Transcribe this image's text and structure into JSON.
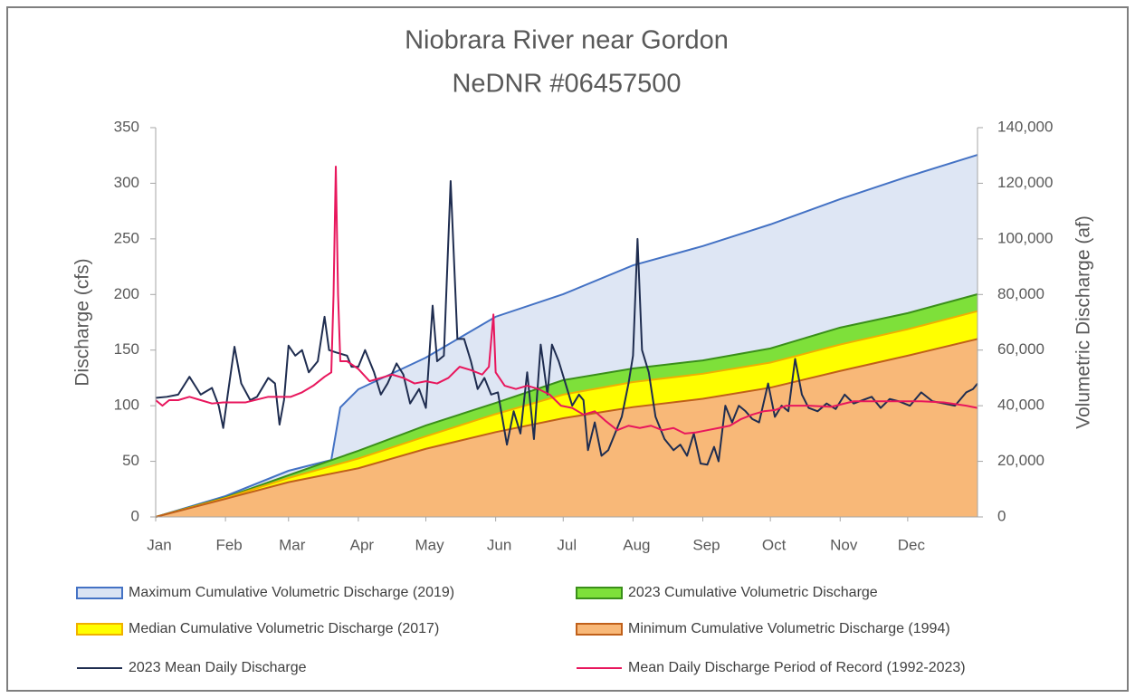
{
  "chart_data": {
    "type": "line",
    "title": "Niobrara River near Gordon",
    "subtitle": "NeDNR #06457500",
    "y_label": "Discharge (cfs)",
    "y2_label": "Volumetric Discharge (af)",
    "xlim": [
      0,
      365
    ],
    "xticks": [
      {
        "value": 0,
        "label": "Jan"
      },
      {
        "value": 31,
        "label": "Feb"
      },
      {
        "value": 59,
        "label": "Mar"
      },
      {
        "value": 90,
        "label": "Apr"
      },
      {
        "value": 120,
        "label": "May"
      },
      {
        "value": 151,
        "label": "Jun"
      },
      {
        "value": 181,
        "label": "Jul"
      },
      {
        "value": 212,
        "label": "Aug"
      },
      {
        "value": 243,
        "label": "Sep"
      },
      {
        "value": 273,
        "label": "Oct"
      },
      {
        "value": 304,
        "label": "Nov"
      },
      {
        "value": 334,
        "label": "Dec"
      }
    ],
    "ylim": [
      0,
      350
    ],
    "yticks": [
      0,
      50,
      100,
      150,
      200,
      250,
      300,
      350
    ],
    "y2lim": [
      0,
      140000
    ],
    "y2ticks": [
      0,
      {
        "value": 20000,
        "label": "20,000"
      },
      {
        "value": 40000,
        "label": "40,000"
      },
      {
        "value": 60000,
        "label": "60,000"
      },
      {
        "value": 80000,
        "label": "80,000"
      },
      {
        "value": 100000,
        "label": "100,000"
      },
      {
        "value": 120000,
        "label": "120,000"
      },
      {
        "value": 140000,
        "label": "140,000"
      }
    ],
    "legend": "bottom",
    "series": [
      {
        "name": "Maximum Cumulative Volumetric Discharge (2019)",
        "kind": "area",
        "axis": "y2",
        "color": "#4472c4",
        "fill": "#dae3f3",
        "x": [
          0,
          31,
          59,
          78,
          82,
          90,
          120,
          151,
          181,
          212,
          243,
          273,
          304,
          334,
          365
        ],
        "values": [
          0,
          7500,
          16600,
          20500,
          39400,
          45900,
          57300,
          72000,
          80100,
          90500,
          97400,
          105200,
          114300,
          122400,
          130200
        ]
      },
      {
        "name": "2023 Cumulative Volumetric Discharge",
        "kind": "area",
        "axis": "y2",
        "color": "#3a8f1a",
        "fill": "#7ee03a",
        "x": [
          0,
          31,
          59,
          90,
          120,
          151,
          181,
          212,
          243,
          273,
          304,
          334,
          365
        ],
        "values": [
          0,
          7000,
          15000,
          23800,
          32900,
          41000,
          49200,
          53400,
          56300,
          60600,
          68100,
          73300,
          80100
        ]
      },
      {
        "name": "Median Cumulative Volumetric Discharge (2017)",
        "kind": "area",
        "axis": "y2",
        "color": "#f0b000",
        "fill": "#ffff00",
        "x": [
          0,
          31,
          59,
          90,
          120,
          151,
          181,
          212,
          243,
          273,
          304,
          334,
          365
        ],
        "values": [
          0,
          6800,
          14000,
          21000,
          29000,
          37000,
          44000,
          48500,
          51500,
          55500,
          62000,
          67500,
          74000
        ]
      },
      {
        "name": "Minimum Cumulative Volumetric Discharge (1994)",
        "kind": "area",
        "axis": "y2",
        "color": "#c0601a",
        "fill": "#f8b878",
        "x": [
          0,
          31,
          59,
          90,
          120,
          151,
          181,
          212,
          243,
          273,
          304,
          334,
          365
        ],
        "values": [
          0,
          6500,
          12500,
          17500,
          24500,
          30500,
          35500,
          39500,
          42500,
          46500,
          52500,
          58000,
          64000
        ]
      },
      {
        "name": "2023 Mean Daily Discharge",
        "kind": "line",
        "axis": "y",
        "color": "#1f2d50",
        "x": [
          0,
          5,
          10,
          15,
          20,
          25,
          28,
          30,
          32,
          35,
          38,
          42,
          45,
          50,
          53,
          55,
          57,
          59,
          62,
          65,
          68,
          72,
          75,
          77,
          80,
          85,
          87,
          90,
          93,
          97,
          100,
          103,
          107,
          110,
          113,
          117,
          120,
          123,
          125,
          128,
          131,
          134,
          137,
          140,
          143,
          146,
          149,
          152,
          156,
          159,
          162,
          165,
          168,
          171,
          174,
          176,
          179,
          182,
          185,
          188,
          190,
          192,
          195,
          198,
          201,
          204,
          207,
          210,
          212,
          214,
          216,
          219,
          222,
          226,
          230,
          233,
          236,
          239,
          242,
          245,
          248,
          250,
          253,
          256,
          259,
          262,
          265,
          268,
          272,
          275,
          278,
          281,
          284,
          287,
          290,
          294,
          298,
          302,
          306,
          310,
          314,
          318,
          322,
          326,
          330,
          335,
          340,
          345,
          350,
          355,
          360,
          363,
          365
        ],
        "values": [
          107,
          108,
          110,
          126,
          110,
          116,
          100,
          80,
          110,
          153,
          120,
          105,
          108,
          125,
          120,
          83,
          105,
          154,
          145,
          150,
          130,
          140,
          180,
          150,
          148,
          145,
          135,
          135,
          150,
          130,
          110,
          120,
          138,
          128,
          102,
          115,
          98,
          190,
          140,
          145,
          302,
          160,
          160,
          140,
          115,
          125,
          110,
          112,
          65,
          95,
          75,
          130,
          70,
          155,
          110,
          155,
          140,
          120,
          100,
          110,
          105,
          60,
          85,
          55,
          60,
          75,
          90,
          120,
          145,
          250,
          150,
          130,
          90,
          70,
          60,
          65,
          55,
          75,
          48,
          47,
          63,
          50,
          100,
          85,
          100,
          95,
          88,
          85,
          120,
          90,
          100,
          95,
          142,
          110,
          98,
          95,
          102,
          97,
          110,
          102,
          105,
          108,
          98,
          106,
          104,
          100,
          112,
          104,
          102,
          100,
          112,
          115,
          120
        ]
      },
      {
        "name": "Mean Daily Discharge Period of Record (1992-2023)",
        "kind": "line",
        "axis": "y",
        "color": "#e8175d",
        "x": [
          0,
          3,
          6,
          10,
          15,
          20,
          25,
          30,
          40,
          50,
          60,
          65,
          70,
          75,
          78,
          79,
          80,
          81,
          82,
          85,
          90,
          95,
          100,
          105,
          110,
          115,
          120,
          125,
          130,
          135,
          140,
          145,
          148,
          150,
          151,
          155,
          160,
          165,
          170,
          175,
          180,
          185,
          190,
          195,
          200,
          205,
          210,
          215,
          220,
          225,
          230,
          235,
          240,
          245,
          250,
          255,
          260,
          265,
          270,
          275,
          280,
          290,
          300,
          310,
          320,
          330,
          340,
          350,
          360,
          365
        ],
        "values": [
          105,
          100,
          105,
          105,
          108,
          105,
          102,
          103,
          103,
          108,
          108,
          112,
          118,
          126,
          130,
          200,
          315,
          200,
          140,
          140,
          133,
          122,
          125,
          128,
          125,
          120,
          122,
          120,
          125,
          135,
          132,
          128,
          135,
          182,
          130,
          118,
          115,
          118,
          115,
          110,
          100,
          98,
          92,
          95,
          86,
          78,
          82,
          80,
          82,
          78,
          80,
          75,
          76,
          78,
          80,
          82,
          88,
          92,
          95,
          96,
          100,
          100,
          99,
          104,
          104,
          104,
          104,
          103,
          100,
          98
        ]
      }
    ]
  }
}
